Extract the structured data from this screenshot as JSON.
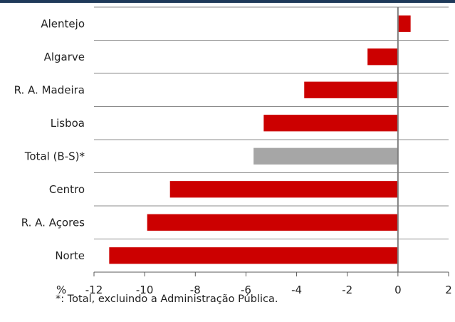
{
  "chart_data": {
    "type": "bar",
    "orientation": "horizontal",
    "categories": [
      "Alentejo",
      "Algarve",
      "R. A. Madeira",
      "Lisboa",
      "Total (B-S)*",
      "Centro",
      "R. A. Açores",
      "Norte"
    ],
    "values": [
      0.5,
      -1.2,
      -3.7,
      -5.3,
      -5.7,
      -9.0,
      -9.9,
      -11.4
    ],
    "colors": [
      "#cc0000",
      "#cc0000",
      "#cc0000",
      "#cc0000",
      "#a6a6a6",
      "#cc0000",
      "#cc0000",
      "#cc0000"
    ],
    "xlim": [
      -12,
      2
    ],
    "x_ticks": [
      -12,
      -10,
      -8,
      -6,
      -4,
      -2,
      0,
      2
    ],
    "x_tick_labels": [
      "-12",
      "-10",
      "-8",
      "-6",
      "-4",
      "-2",
      "0",
      "2"
    ],
    "x_unit_label": "%",
    "grid": "vertical",
    "legend": "none"
  },
  "footnote": "*:  Total, excluindo a Administração Pública."
}
